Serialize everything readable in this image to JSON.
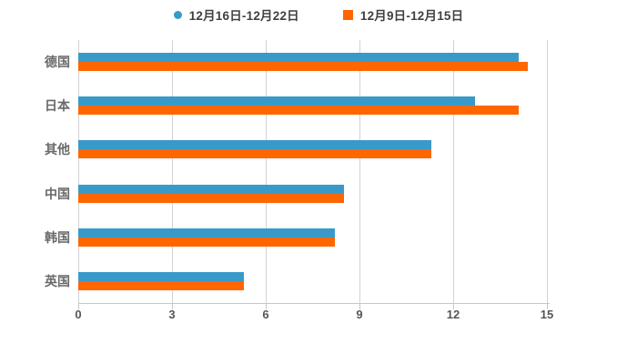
{
  "chart_data": {
    "type": "bar",
    "orientation": "horizontal",
    "title": "",
    "categories": [
      "德国",
      "日本",
      "其他",
      "中国",
      "韩国",
      "英国"
    ],
    "series": [
      {
        "name": "12月16日-12月22日",
        "color": "#399ac9",
        "marker": "circle",
        "values": [
          14.1,
          12.7,
          11.3,
          8.5,
          8.2,
          5.3
        ]
      },
      {
        "name": "12月9日-12月15日",
        "color": "#ff6600",
        "marker": "square",
        "values": [
          14.4,
          14.1,
          11.3,
          8.5,
          8.2,
          5.3
        ]
      }
    ],
    "xlim": [
      0,
      15
    ],
    "xticks": [
      "0",
      "3",
      "6",
      "9",
      "12",
      "15"
    ],
    "grid": true,
    "legend_position": "top"
  },
  "colors": {
    "background": "#ffffff",
    "gridline": "#d2d2d2",
    "axis_line": "#c6c6c6",
    "tick_label": "#565656",
    "category_label": "#696969",
    "legend_label": "#404040"
  }
}
